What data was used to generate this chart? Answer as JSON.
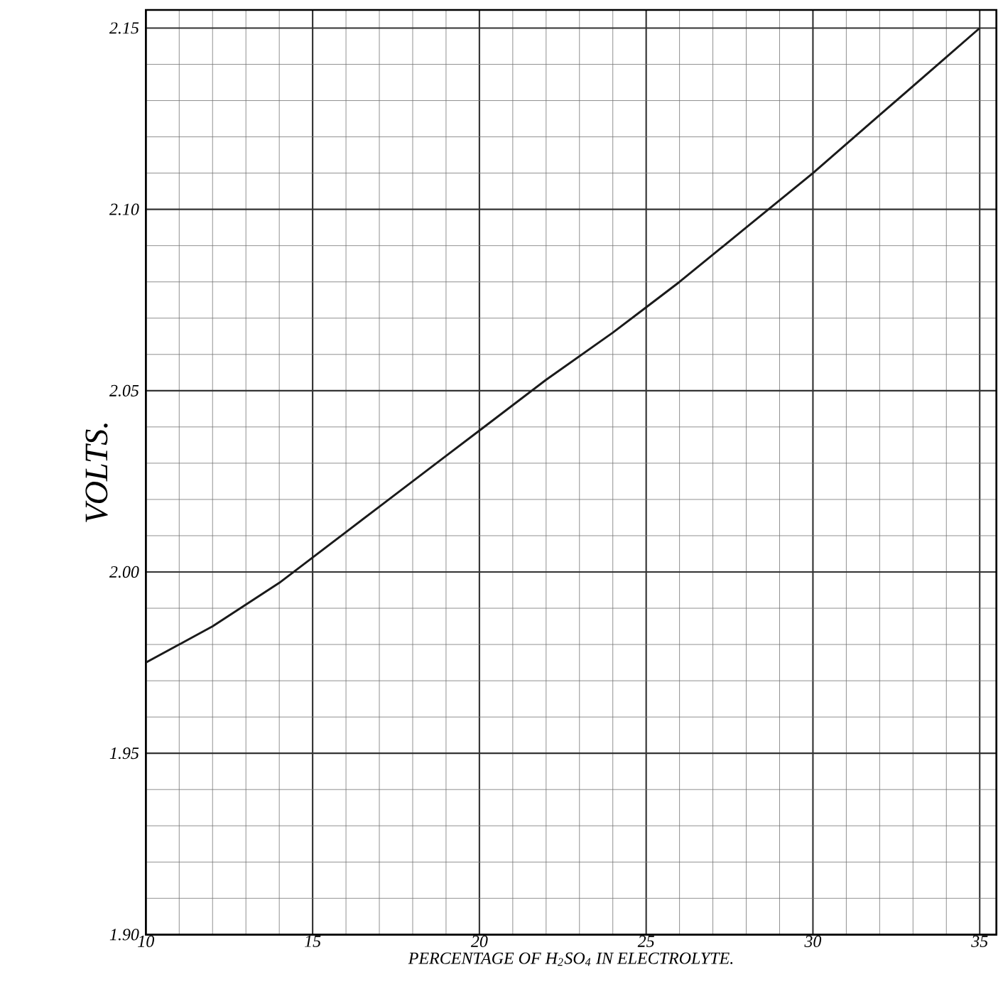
{
  "chart_data": {
    "type": "line",
    "xlabel": "PERCENTAGE OF H$_{2}$SO$_{4}$ IN ELECTROLYTE.",
    "ylabel": "VOLTS.",
    "x": [
      10,
      11,
      12,
      13,
      14,
      15,
      16,
      17,
      18,
      19,
      20,
      22,
      24,
      25,
      26,
      28,
      30,
      32,
      34,
      35
    ],
    "series": [
      {
        "color": "#1a1a1a",
        "values": [
          1.975,
          1.98,
          1.985,
          1.991,
          1.997,
          2.004,
          2.011,
          2.018,
          2.025,
          2.032,
          2.039,
          2.053,
          2.066,
          2.073,
          2.08,
          2.095,
          2.11,
          2.126,
          2.142,
          2.15
        ]
      }
    ],
    "xlim": [
      10,
      35.5
    ],
    "ylim": [
      1.9,
      2.155
    ],
    "xticks": [
      10,
      15,
      20,
      25,
      30,
      35
    ],
    "yticks": [
      {
        "value": 1.9,
        "label": "1.90"
      },
      {
        "value": 1.95,
        "label": "1.95"
      },
      {
        "value": 2.0,
        "label": "2.00"
      },
      {
        "value": 2.05,
        "label": "2.05"
      },
      {
        "value": 2.1,
        "label": "2.10"
      },
      {
        "value": 2.15,
        "label": "2.15"
      }
    ],
    "grid": true,
    "marker": "none",
    "line_style": "solid"
  }
}
